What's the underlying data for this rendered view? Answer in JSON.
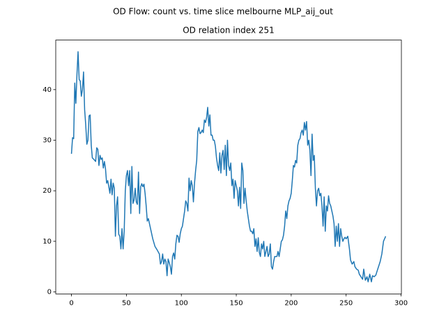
{
  "chart_data": {
    "type": "line",
    "suptitle": "OD Flow: count vs. time slice melbourne MLP_aij_out",
    "title": "OD relation index 251",
    "color": "#1f77b4",
    "x": [
      0,
      1,
      2,
      3,
      4,
      5,
      6,
      7,
      8,
      9,
      10,
      11,
      12,
      13,
      14,
      15,
      16,
      17,
      18,
      19,
      20,
      22,
      23,
      24,
      25,
      26,
      27,
      28,
      29,
      30,
      31,
      32,
      33,
      34,
      35,
      36,
      37,
      38,
      39,
      40,
      41,
      42,
      43,
      44,
      45,
      46,
      47,
      48,
      49,
      50,
      51,
      52,
      53,
      54,
      55,
      56,
      57,
      58,
      59,
      60,
      61,
      62,
      63,
      64,
      65,
      66,
      67,
      68,
      69,
      70,
      72,
      74,
      76,
      78,
      80,
      81,
      82,
      83,
      84,
      85,
      86,
      87,
      88,
      89,
      90,
      91,
      92,
      93,
      94,
      95,
      96,
      97,
      98,
      99,
      100,
      101,
      102,
      103,
      104,
      105,
      106,
      107,
      108,
      109,
      110,
      111,
      112,
      113,
      114,
      115,
      116,
      117,
      118,
      119,
      120,
      121,
      122,
      123,
      124,
      125,
      126,
      127,
      128,
      129,
      130,
      131,
      132,
      133,
      134,
      135,
      136,
      137,
      138,
      139,
      140,
      141,
      142,
      143,
      144,
      145,
      146,
      147,
      148,
      149,
      150,
      151,
      152,
      153,
      154,
      155,
      156,
      157,
      158,
      159,
      160,
      161,
      162,
      163,
      164,
      165,
      166,
      167,
      168,
      169,
      170,
      171,
      172,
      173,
      174,
      175,
      176,
      177,
      178,
      179,
      180,
      181,
      182,
      183,
      184,
      185,
      186,
      187,
      188,
      189,
      190,
      191,
      192,
      193,
      194,
      195,
      196,
      197,
      198,
      199,
      200,
      201,
      202,
      203,
      204,
      205,
      206,
      207,
      208,
      209,
      210,
      211,
      212,
      213,
      214,
      215,
      216,
      217,
      218,
      219,
      220,
      221,
      222,
      223,
      224,
      225,
      226,
      227,
      228,
      229,
      230,
      231,
      232,
      233,
      234,
      235,
      236,
      237,
      238,
      239,
      240,
      241,
      242,
      243,
      244,
      245,
      246,
      247,
      248,
      249,
      250,
      251.5,
      253,
      254,
      255.5,
      257,
      258,
      259.5,
      261,
      262,
      263.5,
      265,
      266,
      267.5,
      269,
      270,
      271.5,
      273,
      274,
      275.5,
      277,
      278,
      279.5,
      281,
      282.5,
      284,
      286
    ],
    "values": [
      27.3,
      30.5,
      30.3,
      41.3,
      37.3,
      43,
      47.5,
      42,
      41.7,
      38.7,
      40,
      43.5,
      36,
      33,
      29.2,
      30,
      34.8,
      35,
      29,
      26.5,
      26.3,
      25.8,
      28.5,
      28.2,
      25,
      27,
      26.2,
      26.5,
      24.5,
      25.8,
      24.3,
      21.5,
      22,
      20.8,
      19.5,
      22.3,
      19.2,
      21.5,
      20.5,
      11,
      17,
      18.8,
      11.4,
      11,
      8.5,
      12.5,
      8.5,
      12,
      20,
      23,
      24,
      21,
      24,
      15.5,
      24.8,
      17.5,
      18.2,
      20.5,
      17.8,
      17.3,
      23.7,
      15.5,
      20.8,
      21.4,
      20.8,
      21.3,
      19.5,
      17,
      14,
      14.5,
      12.5,
      10.5,
      9,
      8.3,
      7.5,
      5.5,
      6,
      7.5,
      5.5,
      6.5,
      6,
      3.2,
      6.5,
      5.8,
      5,
      3.5,
      7,
      7.7,
      6.5,
      9.5,
      11.2,
      11,
      9.8,
      11.5,
      12.5,
      13,
      14.5,
      16,
      18,
      17.5,
      16,
      22.5,
      20,
      22,
      21,
      17.8,
      21.5,
      24,
      26,
      31.7,
      32.5,
      31.3,
      31.5,
      32,
      31.5,
      34,
      33.5,
      34.5,
      36.5,
      32.8,
      35,
      31,
      31,
      30,
      30,
      28.8,
      26.5,
      25,
      24,
      27.5,
      23.5,
      27,
      28,
      24.2,
      29,
      23,
      30,
      25,
      24,
      25.5,
      21,
      22.3,
      18.5,
      22,
      21,
      20,
      17,
      20.7,
      16.5,
      25.5,
      24,
      17.5,
      20.5,
      18,
      16,
      14.5,
      13,
      12,
      12,
      11.5,
      12.5,
      9,
      10.5,
      8,
      10.7,
      7.8,
      7,
      9.5,
      8.5,
      10,
      7,
      8,
      9,
      7,
      7.5,
      9.5,
      5,
      4.5,
      6,
      7,
      7,
      7,
      8,
      7,
      8.5,
      10,
      10.3,
      11.2,
      13,
      16,
      14.5,
      17,
      18,
      18.5,
      19.5,
      22,
      25,
      24.7,
      26,
      25.5,
      29,
      30,
      30.3,
      31.5,
      32,
      31,
      33.5,
      32,
      33.7,
      29,
      30,
      28,
      23,
      31.2,
      26,
      27,
      20.5,
      17,
      20,
      20.5,
      19,
      19.5,
      17,
      13,
      18.8,
      12,
      17,
      16,
      19,
      17.5,
      17,
      16,
      15,
      13.5,
      9,
      13,
      10,
      13.5,
      9,
      12.5,
      11,
      10,
      10.5,
      10.8,
      10.5,
      11,
      8.5,
      6.3,
      5.5,
      6,
      5,
      4.5,
      4.3,
      3.5,
      3,
      2.5,
      4.5,
      2.3,
      3,
      2,
      3.5,
      2,
      3.2,
      3,
      3.3,
      4,
      5,
      6,
      7.5,
      10,
      11
    ],
    "xlim": [
      -14.3,
      300.3
    ],
    "ylim": [
      -0.4,
      49.8
    ],
    "xticks": [
      0,
      50,
      100,
      150,
      200,
      250,
      300
    ],
    "yticks": [
      0,
      10,
      20,
      30,
      40
    ]
  }
}
